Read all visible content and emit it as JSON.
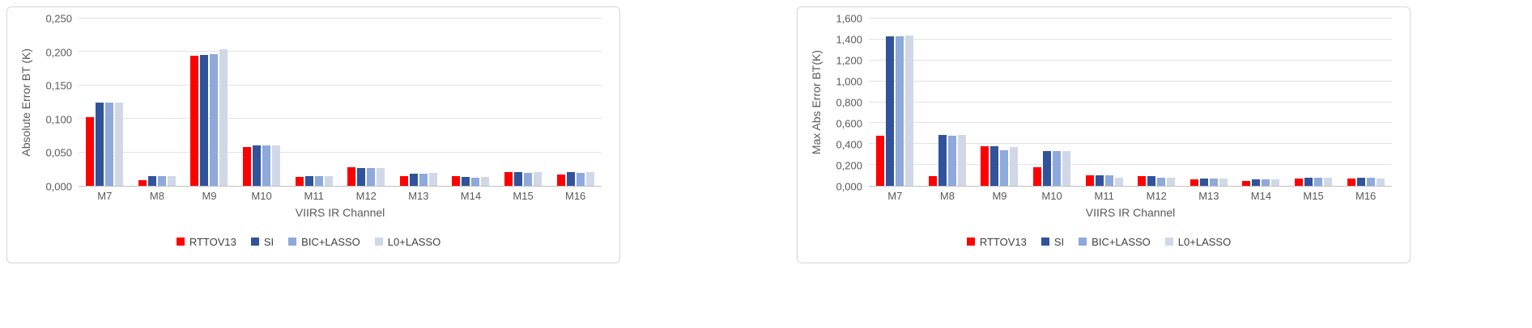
{
  "chart_data": [
    {
      "type": "bar",
      "title": "",
      "xlabel": "VIIRS IR Channel",
      "ylabel": "Absolute Error BT (K)",
      "ylim": [
        0,
        0.25
      ],
      "ytick_labels": [
        "0,000",
        "0,050",
        "0,100",
        "0,150",
        "0,200",
        "0,250"
      ],
      "grid": true,
      "legend_position": "bottom",
      "categories": [
        "M7",
        "M8",
        "M9",
        "M10",
        "M11",
        "M12",
        "M13",
        "M14",
        "M15",
        "M16"
      ],
      "series": [
        {
          "name": "RTTOV13",
          "color": "#ff0000",
          "values": [
            0.103,
            0.008,
            0.195,
            0.058,
            0.013,
            0.028,
            0.015,
            0.014,
            0.02,
            0.017
          ]
        },
        {
          "name": "SI",
          "color": "#31539b",
          "values": [
            0.125,
            0.015,
            0.196,
            0.06,
            0.015,
            0.027,
            0.018,
            0.013,
            0.02,
            0.02
          ]
        },
        {
          "name": "BIC+LASSO",
          "color": "#8ea9db",
          "values": [
            0.125,
            0.014,
            0.197,
            0.06,
            0.015,
            0.027,
            0.018,
            0.012,
            0.019,
            0.019
          ]
        },
        {
          "name": "L0+LASSO",
          "color": "#d0d8e8",
          "values": [
            0.124,
            0.014,
            0.204,
            0.061,
            0.015,
            0.027,
            0.019,
            0.013,
            0.021,
            0.02
          ]
        }
      ]
    },
    {
      "type": "bar",
      "title": "",
      "xlabel": "VIIRS IR Channel",
      "ylabel": "Max Abs Error BT(K)",
      "ylim": [
        0,
        1.6
      ],
      "ytick_labels": [
        "0,000",
        "0,200",
        "0,400",
        "0,600",
        "0,800",
        "1,000",
        "1,200",
        "1,400",
        "1,600"
      ],
      "grid": true,
      "legend_position": "bottom",
      "categories": [
        "M7",
        "M8",
        "M9",
        "M10",
        "M11",
        "M12",
        "M13",
        "M14",
        "M15",
        "M16"
      ],
      "series": [
        {
          "name": "RTTOV13",
          "color": "#ff0000",
          "values": [
            0.48,
            0.09,
            0.38,
            0.18,
            0.1,
            0.09,
            0.06,
            0.05,
            0.07,
            0.07
          ]
        },
        {
          "name": "SI",
          "color": "#31539b",
          "values": [
            1.43,
            0.49,
            0.38,
            0.33,
            0.1,
            0.09,
            0.07,
            0.06,
            0.08,
            0.08
          ]
        },
        {
          "name": "BIC+LASSO",
          "color": "#8ea9db",
          "values": [
            1.43,
            0.48,
            0.34,
            0.33,
            0.1,
            0.08,
            0.07,
            0.06,
            0.08,
            0.08
          ]
        },
        {
          "name": "L0+LASSO",
          "color": "#d0d8e8",
          "values": [
            1.44,
            0.49,
            0.37,
            0.33,
            0.08,
            0.08,
            0.07,
            0.06,
            0.08,
            0.07
          ]
        }
      ]
    }
  ]
}
